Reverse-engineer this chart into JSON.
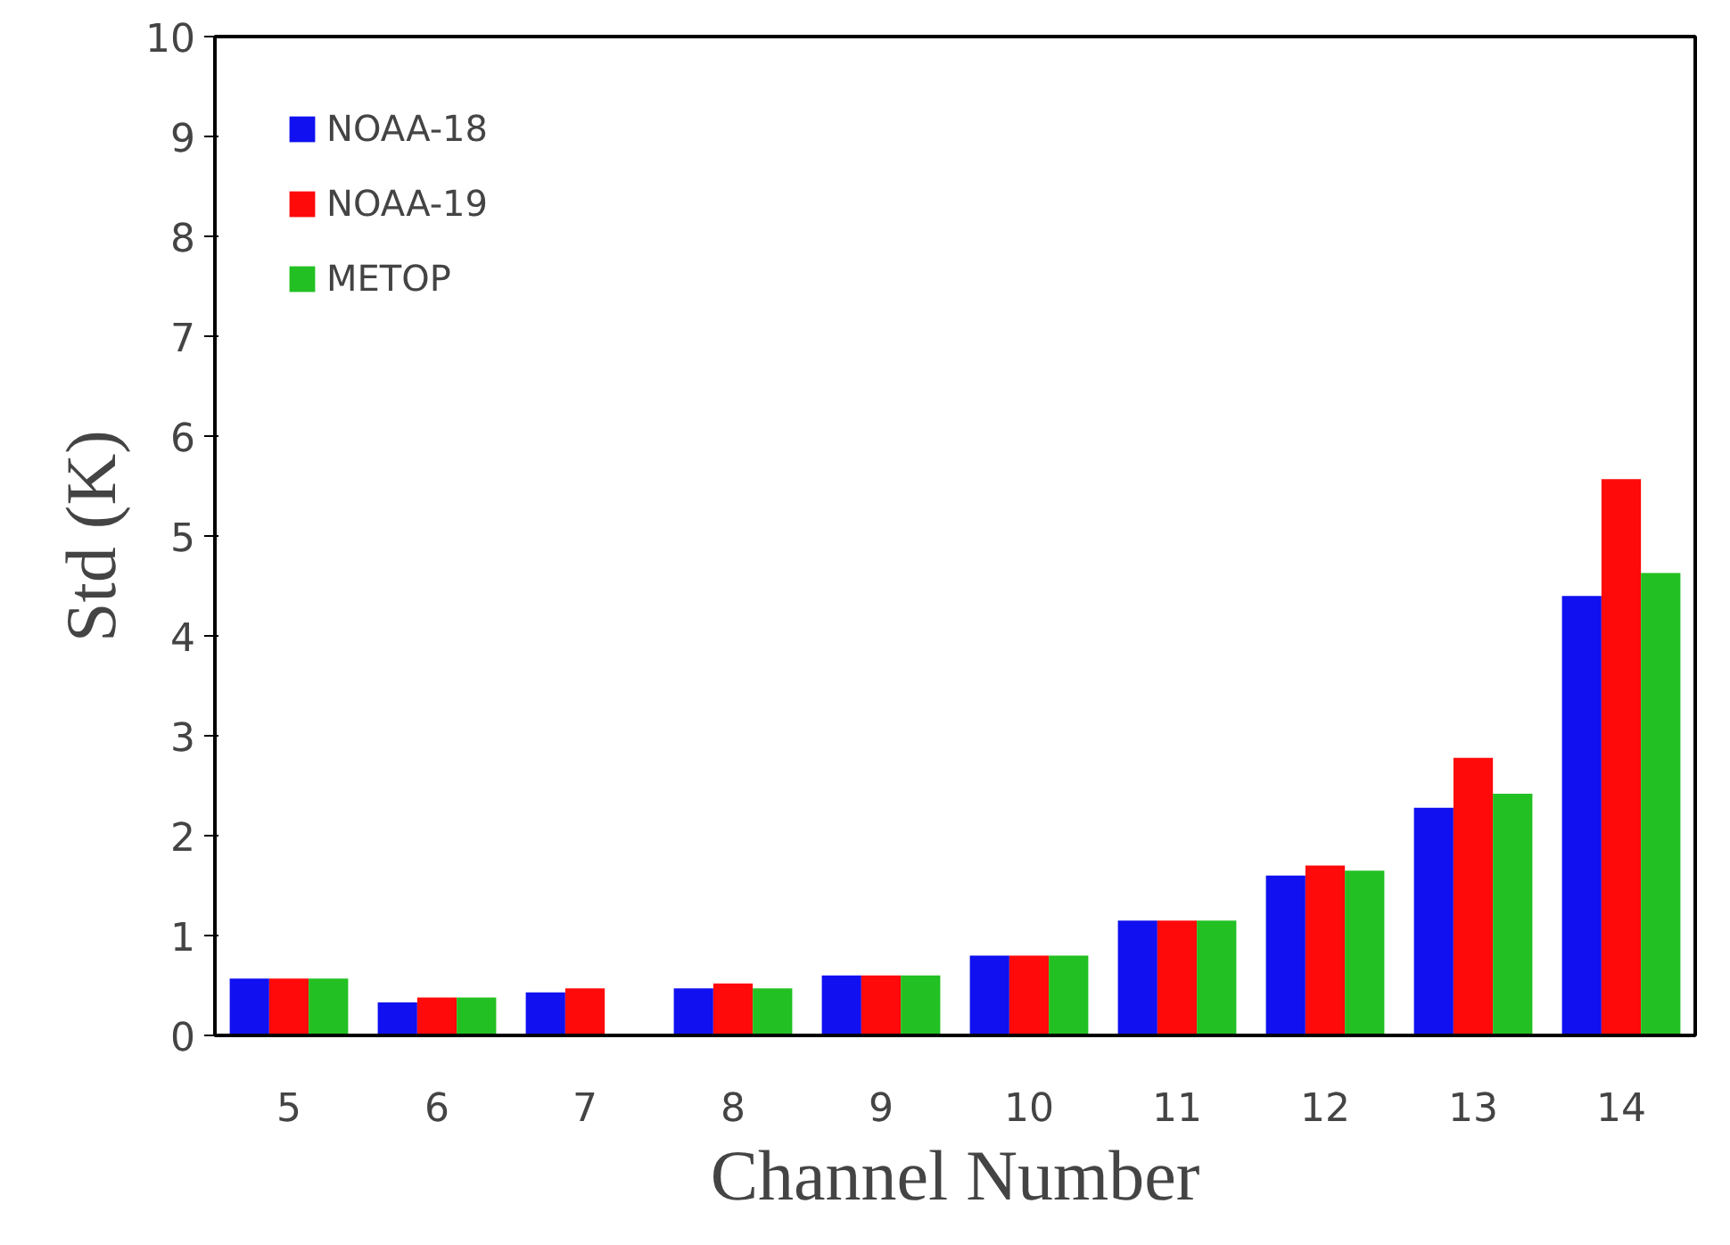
{
  "chart_data": {
    "type": "bar",
    "xlabel": "Channel Number",
    "ylabel": "Std (K)",
    "categories": [
      "5",
      "6",
      "7",
      "8",
      "9",
      "10",
      "11",
      "12",
      "13",
      "14"
    ],
    "series": [
      {
        "name": "NOAA-18",
        "color": "#1010f0",
        "values": [
          0.57,
          0.33,
          0.43,
          0.47,
          0.6,
          0.8,
          1.15,
          1.6,
          2.28,
          4.4
        ]
      },
      {
        "name": "NOAA-19",
        "color": "#ff0a0a",
        "values": [
          0.57,
          0.38,
          0.47,
          0.52,
          0.6,
          0.8,
          1.15,
          1.7,
          2.78,
          5.57
        ]
      },
      {
        "name": "METOP",
        "color": "#22c022",
        "values": [
          0.57,
          0.38,
          null,
          0.47,
          0.6,
          0.8,
          1.15,
          1.65,
          2.42,
          4.63
        ]
      }
    ],
    "ylim": [
      0,
      10
    ],
    "yticks": [
      0,
      1,
      2,
      3,
      4,
      5,
      6,
      7,
      8,
      9,
      10
    ],
    "grid": false,
    "legend": "top left"
  }
}
